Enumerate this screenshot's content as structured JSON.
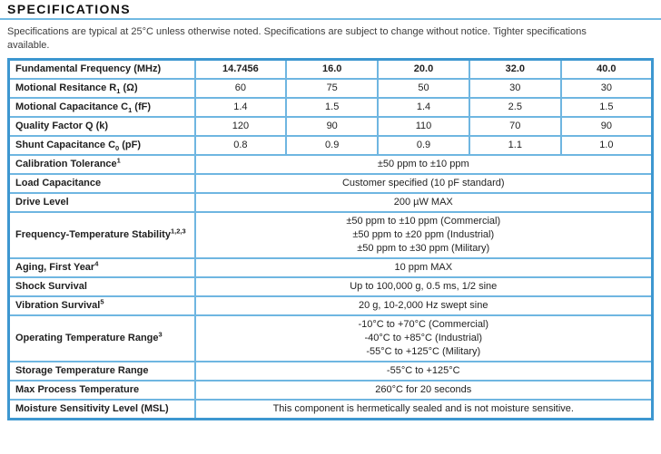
{
  "page": {
    "title": "SPECIFICATIONS",
    "intro_lines": [
      "Specifications are typical at 25°C unless otherwise noted. Specifications are subject to change without notice. Tighter specifications",
      "available."
    ]
  },
  "colors": {
    "table_outer_border": "#3d97d0",
    "table_grid_line": "#6fb6e1",
    "title_rule": "#72b9e2"
  },
  "table": {
    "rows": [
      {
        "kind": "values",
        "bold": true,
        "label": {
          "pre": "Fundamental Frequency (MHz)",
          "sub": "",
          "post": "",
          "sup": ""
        },
        "values": [
          "14.7456",
          "16.0",
          "20.0",
          "32.0",
          "40.0"
        ]
      },
      {
        "kind": "values",
        "bold": false,
        "label": {
          "pre": "Motional Resitance R",
          "sub": "1",
          "post": " (Ω)",
          "sup": ""
        },
        "values": [
          "60",
          "75",
          "50",
          "30",
          "30"
        ]
      },
      {
        "kind": "values",
        "bold": false,
        "label": {
          "pre": "Motional Capacitance C",
          "sub": "1",
          "post": " (fF)",
          "sup": ""
        },
        "values": [
          "1.4",
          "1.5",
          "1.4",
          "2.5",
          "1.5"
        ]
      },
      {
        "kind": "values",
        "bold": false,
        "label": {
          "pre": "Quality Factor Q (k)",
          "sub": "",
          "post": "",
          "sup": ""
        },
        "values": [
          "120",
          "90",
          "110",
          "70",
          "90"
        ]
      },
      {
        "kind": "values",
        "bold": false,
        "label": {
          "pre": "Shunt Capacitance C",
          "sub": "0",
          "post": " (pF)",
          "sup": ""
        },
        "values": [
          "0.8",
          "0.9",
          "0.9",
          "1.1",
          "1.0"
        ]
      },
      {
        "kind": "span",
        "label": {
          "pre": "Calibration Tolerance",
          "sub": "",
          "post": "",
          "sup": "1"
        },
        "lines": [
          "±50 ppm to ±10 ppm"
        ]
      },
      {
        "kind": "span",
        "label": {
          "pre": "Load Capacitance",
          "sub": "",
          "post": "",
          "sup": ""
        },
        "lines": [
          "Customer specified (10 pF standard)"
        ]
      },
      {
        "kind": "span",
        "label": {
          "pre": "Drive Level",
          "sub": "",
          "post": "",
          "sup": ""
        },
        "lines": [
          "200 µW MAX"
        ]
      },
      {
        "kind": "span",
        "label": {
          "pre": "Frequency-Temperature Stability",
          "sub": "",
          "post": "",
          "sup": "1,2,3"
        },
        "lines": [
          "±50 ppm to ±10 ppm (Commercial)",
          "±50 ppm to ±20 ppm (Industrial)",
          "±50 ppm to ±30 ppm (Military)"
        ]
      },
      {
        "kind": "span",
        "label": {
          "pre": "Aging, First Year",
          "sub": "",
          "post": "",
          "sup": "4"
        },
        "lines": [
          "10 ppm MAX"
        ]
      },
      {
        "kind": "span",
        "label": {
          "pre": "Shock Survival",
          "sub": "",
          "post": "",
          "sup": ""
        },
        "lines": [
          "Up to 100,000 g, 0.5 ms, 1/2 sine"
        ]
      },
      {
        "kind": "span",
        "label": {
          "pre": "Vibration Survival",
          "sub": "",
          "post": "",
          "sup": "5"
        },
        "lines": [
          "20 g, 10-2,000 Hz swept sine"
        ]
      },
      {
        "kind": "span",
        "label": {
          "pre": "Operating Temperature Range",
          "sub": "",
          "post": "",
          "sup": "3"
        },
        "lines": [
          "-10°C to +70°C (Commercial)",
          "-40°C to +85°C (Industrial)",
          "-55°C to +125°C (Military)"
        ]
      },
      {
        "kind": "span",
        "label": {
          "pre": "Storage Temperature Range",
          "sub": "",
          "post": "",
          "sup": ""
        },
        "lines": [
          "-55°C to +125°C"
        ]
      },
      {
        "kind": "span",
        "label": {
          "pre": "Max Process Temperature",
          "sub": "",
          "post": "",
          "sup": ""
        },
        "lines": [
          "260°C for 20 seconds"
        ]
      },
      {
        "kind": "span",
        "label": {
          "pre": "Moisture Sensitivity Level (MSL)",
          "sub": "",
          "post": "",
          "sup": ""
        },
        "lines": [
          "This component is hermetically sealed and is not moisture sensitive."
        ]
      }
    ]
  }
}
